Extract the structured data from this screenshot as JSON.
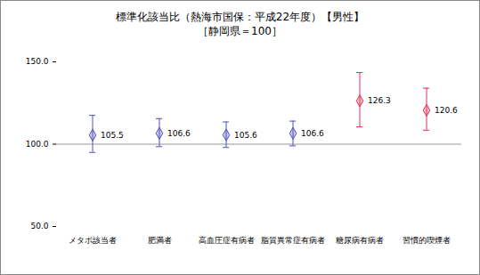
{
  "chart_data": {
    "type": "scatter",
    "title": "標準化該当比（熱海市国保：平成22年度）【男性】",
    "subtitle": "［静岡県＝100］",
    "categories": [
      "メタボ該当者",
      "肥満者",
      "高血圧症有病者",
      "脂質異常症有病者",
      "糖尿病有病者",
      "習慣的喫煙者"
    ],
    "values": [
      105.5,
      106.6,
      105.6,
      106.6,
      126.3,
      120.6
    ],
    "lower": [
      95.0,
      98.5,
      98.0,
      99.0,
      110.5,
      108.5
    ],
    "upper": [
      117.5,
      115.5,
      113.5,
      114.0,
      143.5,
      134.0
    ],
    "colors": [
      "#5050c0",
      "#5050c0",
      "#5050c0",
      "#5050c0",
      "#e0305a",
      "#e0305a"
    ],
    "marker": "diamond",
    "data_labels": true,
    "baseline": 100,
    "ylim": [
      50,
      150
    ],
    "yticks": [
      {
        "value": 50,
        "label": "50.0"
      },
      {
        "value": 100,
        "label": "100.0"
      },
      {
        "value": 150,
        "label": "150.0"
      }
    ],
    "grid": false
  }
}
